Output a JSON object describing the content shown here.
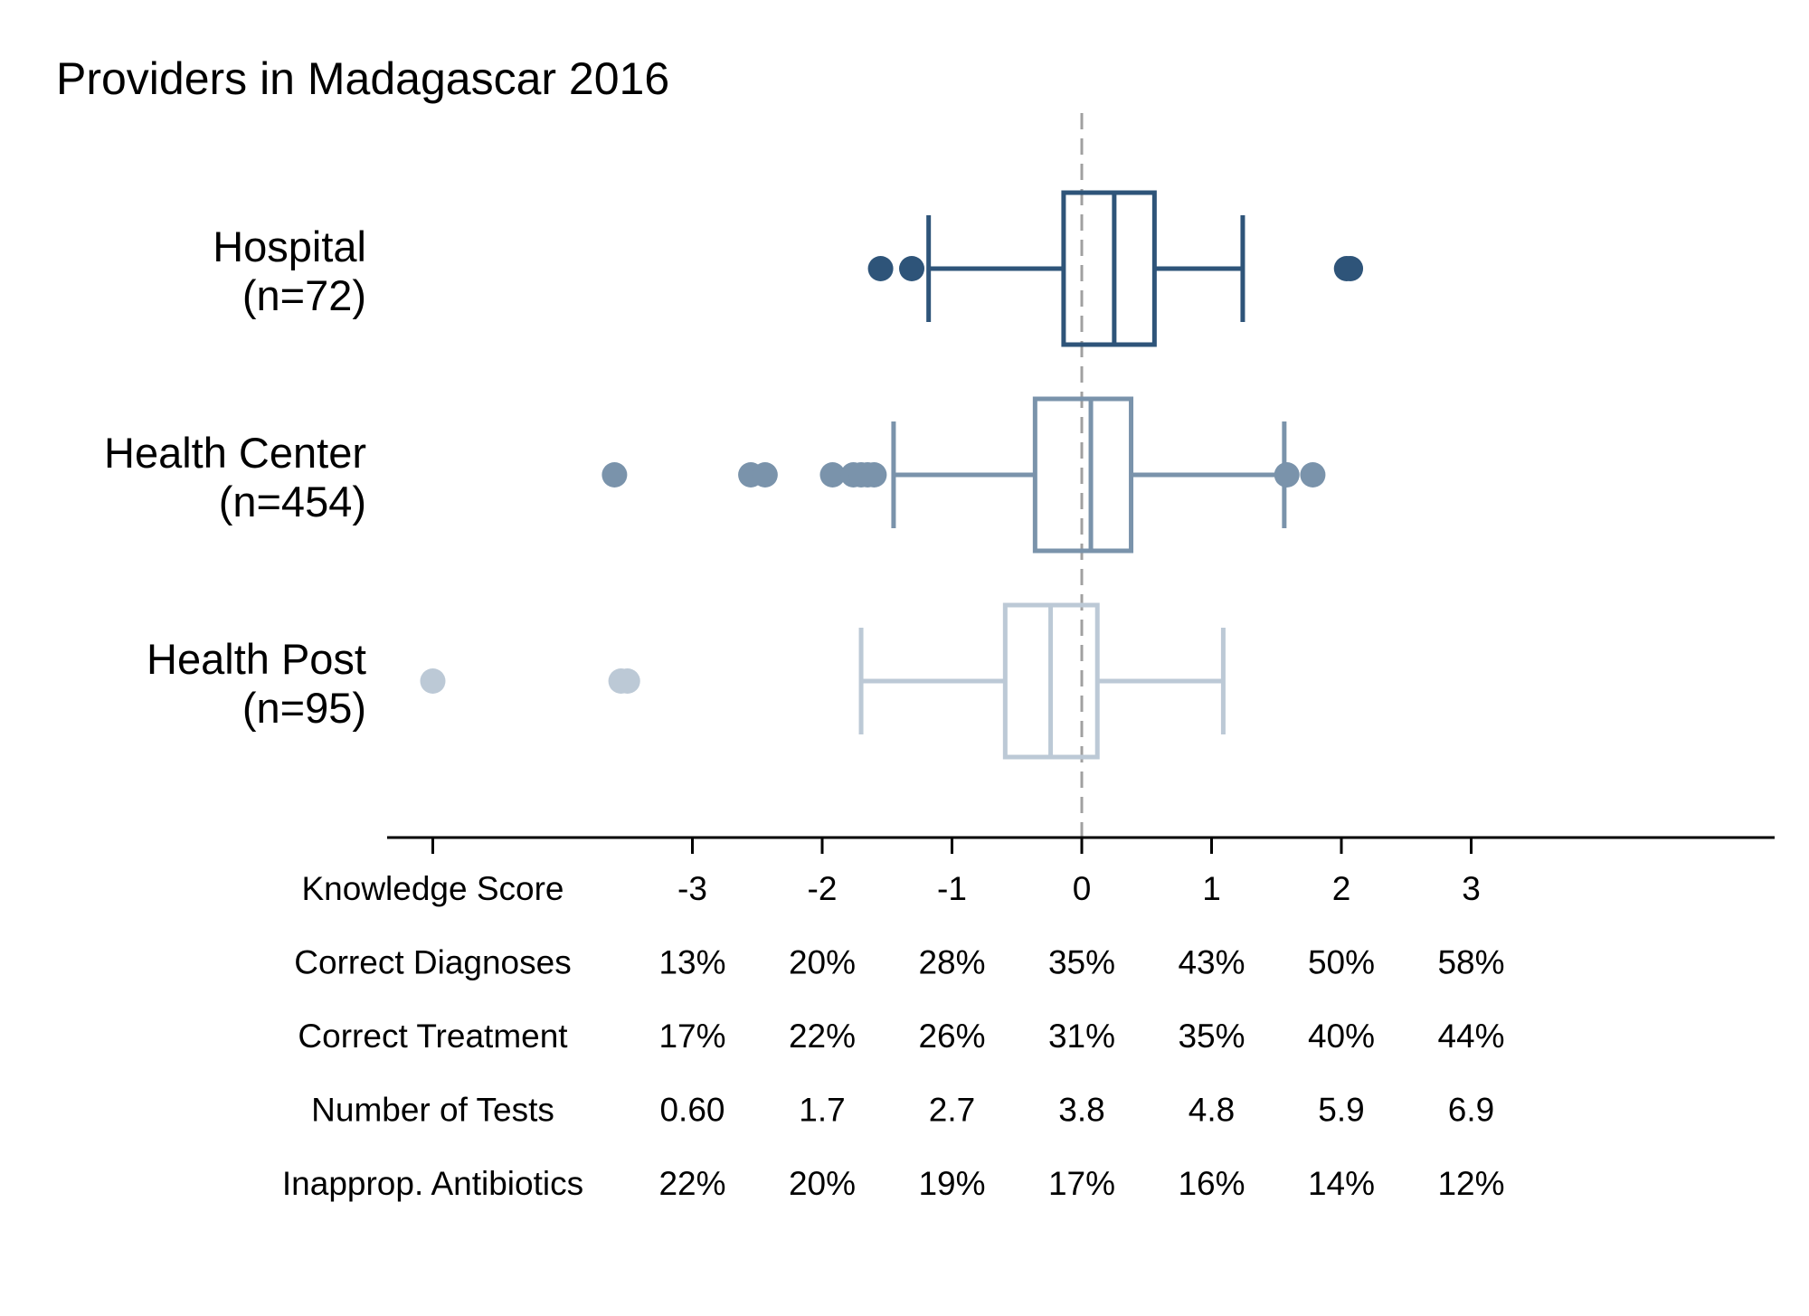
{
  "chart_data": {
    "type": "box",
    "title": "Providers in Madagascar 2016",
    "xlabel": "Knowledge Score",
    "xlim": [
      -3.5,
      5.4
    ],
    "xticks": [
      -3,
      -2,
      -1,
      0,
      1,
      2,
      3
    ],
    "reference_line": {
      "x": 0,
      "style": "dashed"
    },
    "grid": false,
    "groups": [
      {
        "name": "Hospital",
        "n_label": "(n=72)",
        "color": "#2e5479",
        "whisker_low": -1.18,
        "q1": -0.14,
        "median": 0.25,
        "q3": 0.56,
        "whisker_high": 1.24,
        "outliers": [
          -1.55,
          -1.31,
          2.04,
          2.07
        ]
      },
      {
        "name": "Health Center",
        "n_label": "(n=454)",
        "color": "#7a93ab",
        "whisker_low": -1.45,
        "q1": -0.36,
        "median": 0.07,
        "q3": 0.38,
        "whisker_high": 1.56,
        "outliers": [
          -3.6,
          -2.55,
          -2.44,
          -1.92,
          -1.76,
          -1.7,
          -1.65,
          -1.6,
          1.58,
          1.78
        ]
      },
      {
        "name": "Health Post",
        "n_label": "(n=95)",
        "color": "#bcc9d6",
        "whisker_low": -1.7,
        "q1": -0.59,
        "median": -0.24,
        "q3": 0.12,
        "whisker_high": 1.09,
        "outliers": [
          -5.0,
          -3.55,
          -3.5
        ]
      }
    ],
    "table": {
      "columns": [
        "-3",
        "-2",
        "-1",
        "0",
        "1",
        "2",
        "3"
      ],
      "rows": [
        {
          "label": "Knowledge Score",
          "values": [
            "-3",
            "-2",
            "-1",
            "0",
            "1",
            "2",
            "3"
          ]
        },
        {
          "label": "Correct Diagnoses",
          "values": [
            "13%",
            "20%",
            "28%",
            "35%",
            "43%",
            "50%",
            "58%"
          ]
        },
        {
          "label": "Correct Treatment",
          "values": [
            "17%",
            "22%",
            "26%",
            "31%",
            "35%",
            "40%",
            "44%"
          ]
        },
        {
          "label": "Number of Tests",
          "values": [
            "0.60",
            "1.7",
            "2.7",
            "3.8",
            "4.8",
            "5.9",
            "6.9"
          ]
        },
        {
          "label": "Inapprop. Antibiotics",
          "values": [
            "22%",
            "20%",
            "19%",
            "17%",
            "16%",
            "14%",
            "12%"
          ]
        }
      ]
    }
  }
}
